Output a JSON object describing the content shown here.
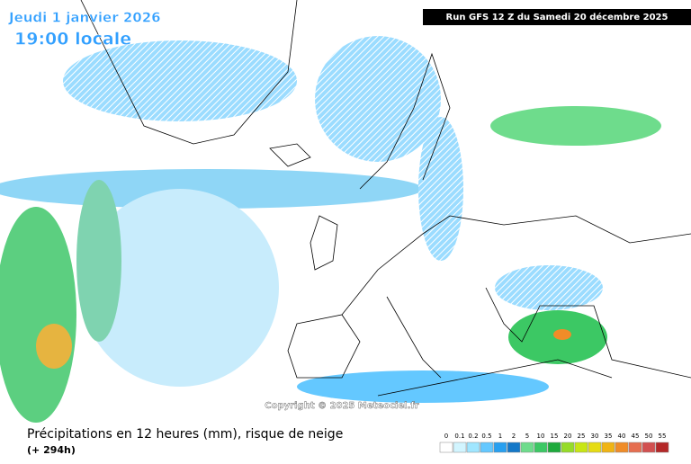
{
  "header": {
    "date": "Jeudi 1 janvier 2026",
    "time": "19:00 locale",
    "run": "Run GFS 12 Z du Samedi 20 décembre 2025"
  },
  "map": {
    "copyright": "Copyright © 2025 Meteociel.fr"
  },
  "footer": {
    "title": "Précipitations en 12 heures (mm), risque de neige",
    "lead": "(+ 294h)"
  },
  "legend": {
    "items": [
      {
        "label": 0,
        "color": "#ffffff"
      },
      {
        "label": 0.1,
        "color": "#d2f5ff"
      },
      {
        "label": 0.2,
        "color": "#a0e6ff"
      },
      {
        "label": 0.5,
        "color": "#64c8ff"
      },
      {
        "label": 1,
        "color": "#28a0f0"
      },
      {
        "label": 2,
        "color": "#1478c8"
      },
      {
        "label": 5,
        "color": "#6edc8c"
      },
      {
        "label": 10,
        "color": "#3cc864"
      },
      {
        "label": 15,
        "color": "#1eaa3c"
      },
      {
        "label": 20,
        "color": "#96dc28"
      },
      {
        "label": 25,
        "color": "#c8e614"
      },
      {
        "label": 30,
        "color": "#e6dc14"
      },
      {
        "label": 35,
        "color": "#f0b414"
      },
      {
        "label": 40,
        "color": "#f08c28"
      },
      {
        "label": 45,
        "color": "#e66e50"
      },
      {
        "label": 50,
        "color": "#d25050"
      },
      {
        "label": 55,
        "color": "#b42828"
      }
    ]
  }
}
